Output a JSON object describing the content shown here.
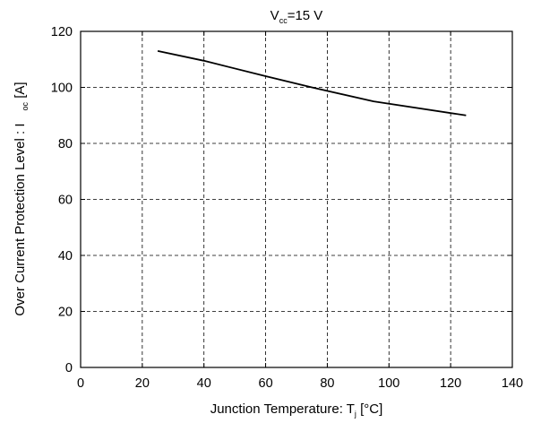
{
  "chart_data": {
    "type": "line",
    "title": {
      "main": "V",
      "sub": "cc",
      "rest": "=15 V"
    },
    "xlabel": {
      "main": "Junction Temperature: T",
      "sub": "j",
      "rest": " [°C]"
    },
    "ylabel": {
      "main": "Over Current Protection Level : I",
      "sub": "oc",
      "rest": " [A]"
    },
    "xlim": [
      0,
      140
    ],
    "ylim": [
      0,
      120
    ],
    "xticks": [
      0,
      20,
      40,
      60,
      80,
      100,
      120,
      140
    ],
    "yticks": [
      0,
      20,
      40,
      60,
      80,
      100,
      120
    ],
    "grid": true,
    "series": [
      {
        "x": [
          25,
          40,
          60,
          75,
          95,
          125
        ],
        "y": [
          113,
          109.5,
          104,
          100,
          95,
          90
        ]
      }
    ]
  }
}
